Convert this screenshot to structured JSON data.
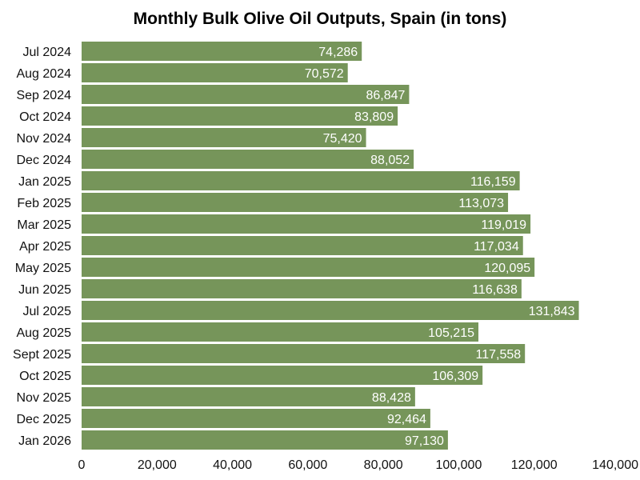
{
  "chart_data": {
    "type": "bar",
    "orientation": "horizontal",
    "title": "Monthly Bulk Olive Oil Outputs, Spain (in tons)",
    "xlabel": "",
    "ylabel": "",
    "categories": [
      "Jul 2024",
      "Aug 2024",
      "Sep 2024",
      "Oct 2024",
      "Nov 2024",
      "Dec 2024",
      "Jan 2025",
      "Feb 2025",
      "Mar 2025",
      "Apr 2025",
      "May 2025",
      "Jun 2025",
      "Jul 2025",
      "Aug 2025",
      "Sept 2025",
      "Oct 2025",
      "Nov 2025",
      "Dec 2025",
      "Jan 2026"
    ],
    "values": [
      74286,
      70572,
      86847,
      83809,
      75420,
      88052,
      116159,
      113073,
      119019,
      117034,
      120095,
      116638,
      131843,
      105215,
      117558,
      106309,
      88428,
      92464,
      97130
    ],
    "value_labels": [
      "74,286",
      "70,572",
      "86,847",
      "83,809",
      "75,420",
      "88,052",
      "116,159",
      "113,073",
      "119,019",
      "117,034",
      "120,095",
      "116,638",
      "131,843",
      "105,215",
      "117,558",
      "106,309",
      "88,428",
      "92,464",
      "97,130"
    ],
    "xlim": [
      0,
      140000
    ],
    "x_ticks": [
      0,
      20000,
      40000,
      60000,
      80000,
      100000,
      120000,
      140000
    ],
    "x_tick_labels": [
      "0",
      "20,000",
      "40,000",
      "60,000",
      "80,000",
      "100,000",
      "120,000",
      "140,000"
    ],
    "bar_color": "#76955a",
    "grid": false,
    "legend": "none"
  }
}
